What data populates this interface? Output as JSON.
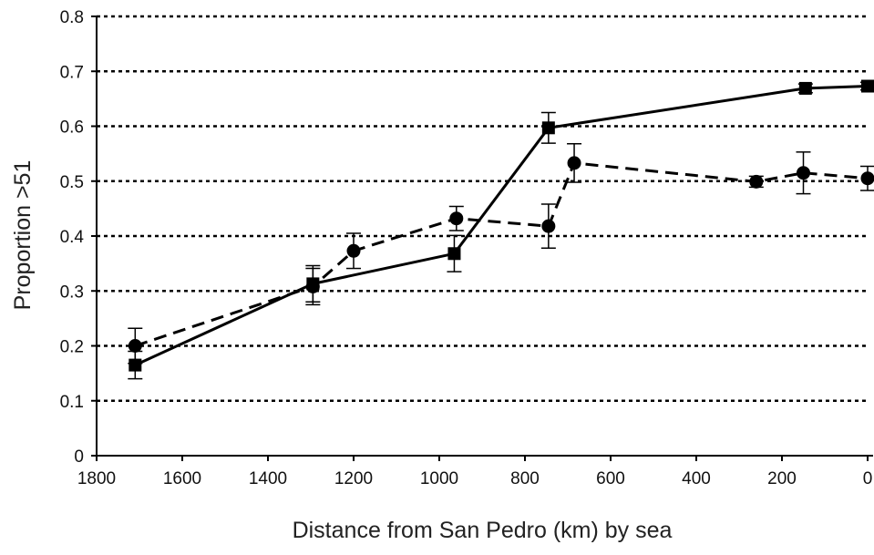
{
  "chart_data": {
    "type": "line",
    "title": "",
    "xlabel": "Distance from San Pedro (km) by sea",
    "ylabel": "Proportion >51",
    "xlim": [
      1800,
      0
    ],
    "x_reversed": true,
    "x_ticks": [
      1800,
      1600,
      1400,
      1200,
      1000,
      800,
      600,
      400,
      200,
      0
    ],
    "ylim": [
      0,
      0.8
    ],
    "y_ticks": [
      0,
      0.1,
      0.2,
      0.3,
      0.4,
      0.5,
      0.6,
      0.7,
      0.8
    ],
    "y_tick_labels": [
      "0",
      "0.1",
      "0.2",
      "0.3",
      "0.4",
      "0.5",
      "0.6",
      "0.7",
      "0.8"
    ],
    "grid": "horizontal dotted",
    "legend": "none",
    "series": [
      {
        "marker": "square",
        "line_style": "solid",
        "color": "#000000",
        "x": [
          1710,
          1295,
          965,
          745,
          145,
          0
        ],
        "y": [
          0.165,
          0.313,
          0.368,
          0.597,
          0.669,
          0.673
        ],
        "error": [
          0.025,
          0.033,
          0.033,
          0.028,
          0.008,
          0.007
        ]
      },
      {
        "marker": "circle",
        "line_style": "dashed",
        "color": "#000000",
        "x": [
          1710,
          1295,
          1200,
          960,
          745,
          685,
          260,
          150,
          0
        ],
        "y": [
          0.2,
          0.308,
          0.373,
          0.432,
          0.418,
          0.533,
          0.499,
          0.515,
          0.505
        ],
        "error": [
          0.032,
          0.033,
          0.032,
          0.022,
          0.04,
          0.035,
          0.01,
          0.038,
          0.022
        ]
      }
    ]
  }
}
